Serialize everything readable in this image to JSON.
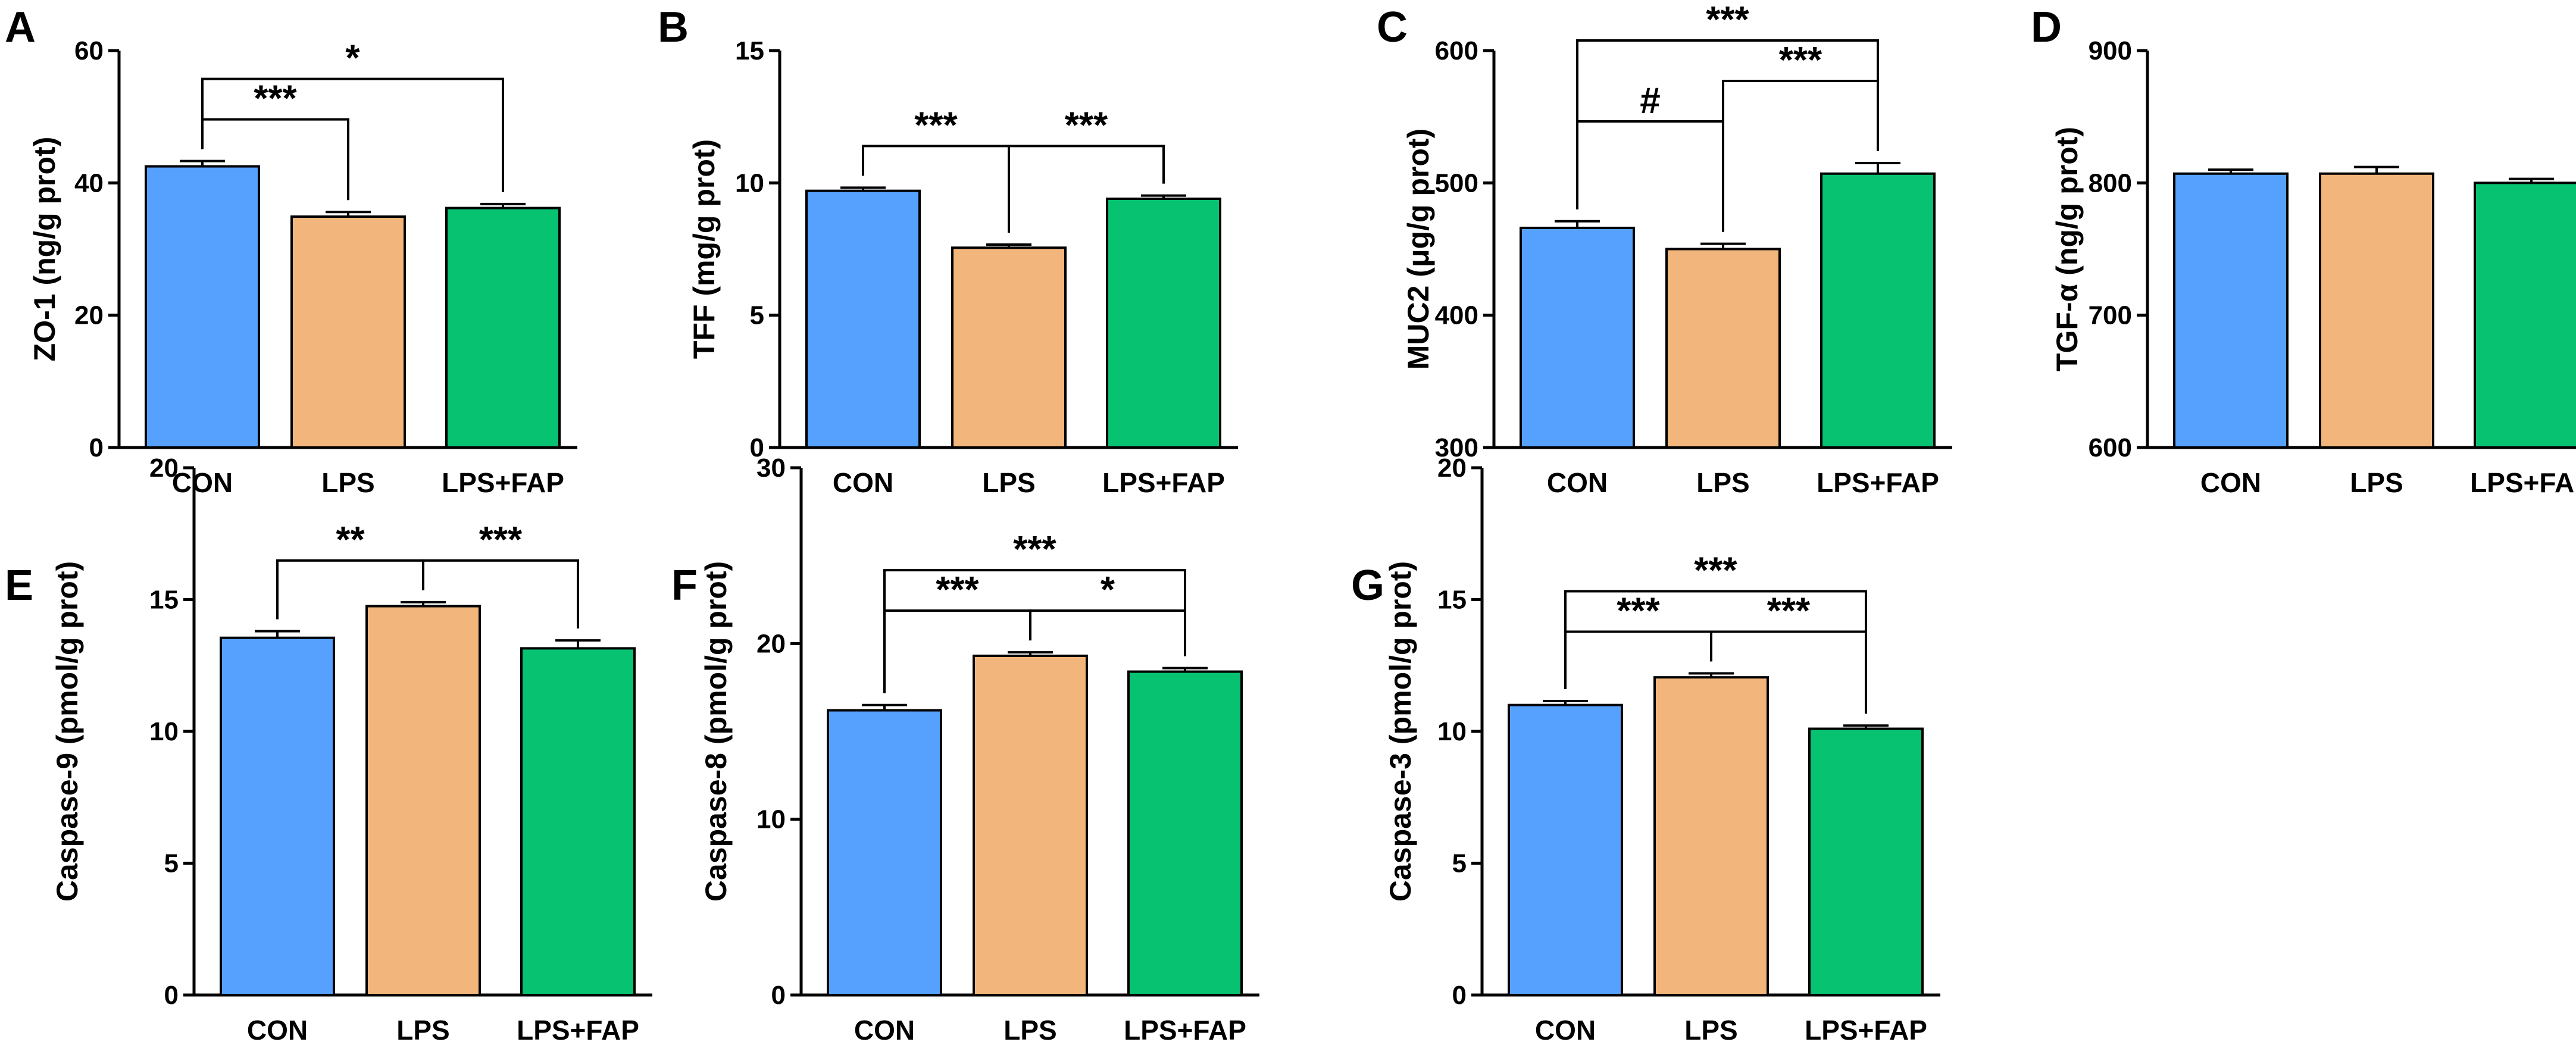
{
  "colors": {
    "CON": "#55a1fd",
    "LPS": "#f2b67c",
    "LPS+FAP": "#07c271"
  },
  "chart_data": [
    {
      "type": "bar",
      "panel": "A",
      "ylabel": "ZO-1 (ng/g prot)",
      "categories": [
        "CON",
        "LPS",
        "LPS+FAP"
      ],
      "values": [
        42.5,
        34.9,
        36.2
      ],
      "errors": [
        0.8,
        0.7,
        0.6
      ],
      "ylim": [
        0,
        60
      ],
      "yticks": [
        "0",
        "20",
        "40",
        "60"
      ],
      "comparisons": [
        {
          "a": 0,
          "b": 1,
          "label": "***",
          "level": 0
        },
        {
          "a": 0,
          "b": 2,
          "label": "*",
          "level": 1
        }
      ]
    },
    {
      "type": "bar",
      "panel": "B",
      "ylabel": "TFF (mg/g prot)",
      "categories": [
        "CON",
        "LPS",
        "LPS+FAP"
      ],
      "values": [
        9.7,
        7.55,
        9.4
      ],
      "errors": [
        0.12,
        0.12,
        0.12
      ],
      "ylim": [
        0,
        15
      ],
      "yticks": [
        "0",
        "5",
        "10",
        "15"
      ],
      "comparisons": [
        {
          "a": 0,
          "b": 1,
          "label": "***",
          "level": 0
        },
        {
          "a": 1,
          "b": 2,
          "label": "***",
          "level": 0
        }
      ]
    },
    {
      "type": "bar",
      "panel": "C",
      "ylabel": "MUC2 (μg/g prot)",
      "categories": [
        "CON",
        "LPS",
        "LPS+FAP"
      ],
      "values": [
        466,
        450,
        507
      ],
      "errors": [
        5,
        4,
        8
      ],
      "ylim": [
        300,
        600
      ],
      "yticks": [
        "300",
        "400",
        "500",
        "600"
      ],
      "comparisons": [
        {
          "a": 0,
          "b": 1,
          "label": "#",
          "level": 0
        },
        {
          "a": 1,
          "b": 2,
          "label": "***",
          "level": 1
        },
        {
          "a": 0,
          "b": 2,
          "label": "***",
          "level": 2
        }
      ]
    },
    {
      "type": "bar",
      "panel": "D",
      "ylabel": "TGF-α (ng/g prot)",
      "categories": [
        "CON",
        "LPS",
        "LPS+FAP"
      ],
      "values": [
        807,
        807,
        800
      ],
      "errors": [
        3,
        5,
        3
      ],
      "ylim": [
        600,
        900
      ],
      "yticks": [
        "600",
        "700",
        "800",
        "900"
      ],
      "comparisons": []
    },
    {
      "type": "bar",
      "panel": "E",
      "ylabel": "Caspase-9 (pmol/g prot)",
      "categories": [
        "CON",
        "LPS",
        "LPS+FAP"
      ],
      "values": [
        13.55,
        14.75,
        13.15
      ],
      "errors": [
        0.25,
        0.15,
        0.3
      ],
      "ylim": [
        0,
        20
      ],
      "yticks": [
        "0",
        "5",
        "10",
        "15",
        "20"
      ],
      "comparisons": [
        {
          "a": 0,
          "b": 1,
          "label": "**",
          "level": 0
        },
        {
          "a": 1,
          "b": 2,
          "label": "***",
          "level": 0
        }
      ]
    },
    {
      "type": "bar",
      "panel": "F",
      "ylabel": "Caspase-8 (pmol/g prot)",
      "categories": [
        "CON",
        "LPS",
        "LPS+FAP"
      ],
      "values": [
        16.2,
        19.3,
        18.4
      ],
      "errors": [
        0.3,
        0.2,
        0.2
      ],
      "ylim": [
        0,
        30
      ],
      "yticks": [
        "0",
        "10",
        "20",
        "30"
      ],
      "comparisons": [
        {
          "a": 0,
          "b": 1,
          "label": "***",
          "level": 0
        },
        {
          "a": 1,
          "b": 2,
          "label": "*",
          "level": 0
        },
        {
          "a": 0,
          "b": 2,
          "label": "***",
          "level": 1
        }
      ]
    },
    {
      "type": "bar",
      "panel": "G",
      "ylabel": "Caspase-3 (pmol/g prot)",
      "categories": [
        "CON",
        "LPS",
        "LPS+FAP"
      ],
      "values": [
        11.0,
        12.05,
        10.1
      ],
      "errors": [
        0.15,
        0.15,
        0.12
      ],
      "ylim": [
        0,
        20
      ],
      "yticks": [
        "0",
        "5",
        "10",
        "15",
        "20"
      ],
      "comparisons": [
        {
          "a": 0,
          "b": 1,
          "label": "***",
          "level": 0
        },
        {
          "a": 1,
          "b": 2,
          "label": "***",
          "level": 0
        },
        {
          "a": 0,
          "b": 2,
          "label": "***",
          "level": 1
        }
      ]
    }
  ]
}
